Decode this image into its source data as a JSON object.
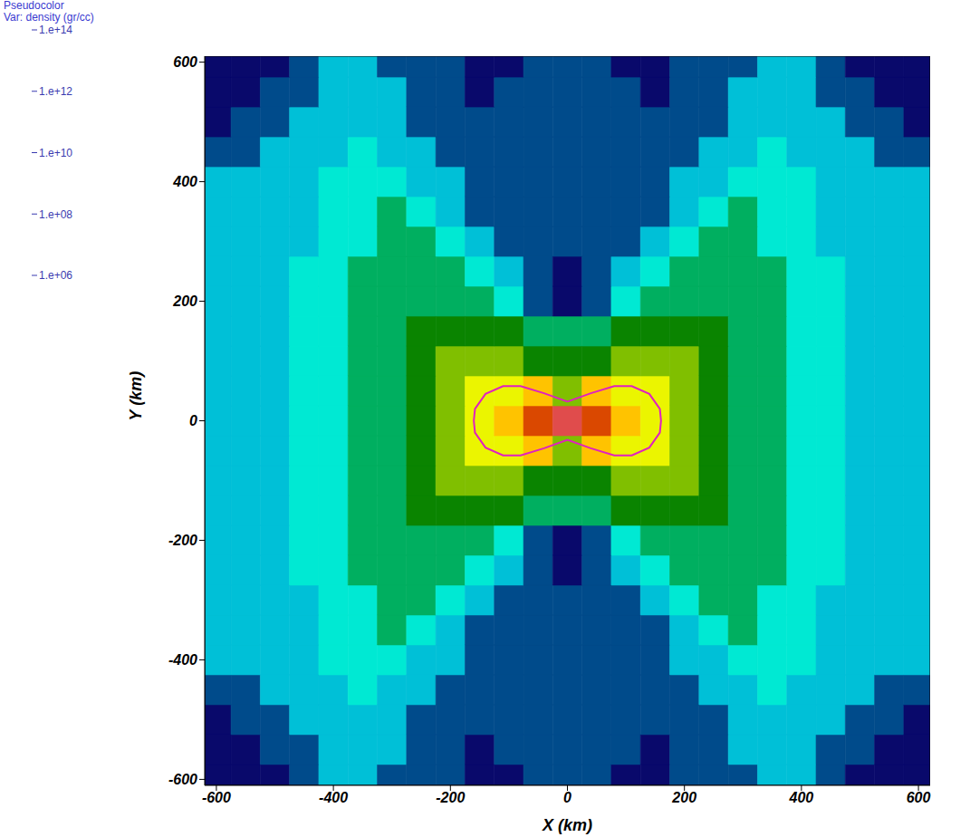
{
  "chart_data": {
    "type": "heatmap",
    "title": "Pseudocolor",
    "subtitle": "Var: density (gr/cc)",
    "x_label": "X (km)",
    "y_label": "Y (km)",
    "xlim": [
      -620,
      620
    ],
    "ylim": [
      -610,
      610
    ],
    "xticks": [
      -600,
      -400,
      -200,
      0,
      200,
      400,
      600
    ],
    "yticks": [
      -600,
      -400,
      -200,
      0,
      200,
      400,
      600
    ],
    "grid": false,
    "x": [
      -600,
      -550,
      -500,
      -450,
      -400,
      -350,
      -300,
      -250,
      -200,
      -150,
      -100,
      -50,
      0,
      50,
      100,
      150,
      200,
      250,
      300,
      350,
      400,
      450,
      500,
      550,
      600
    ],
    "y": [
      -600,
      -550,
      -500,
      -450,
      -400,
      -350,
      -300,
      -250,
      -200,
      -150,
      -100,
      -50,
      0,
      50,
      100,
      150,
      200,
      250,
      300,
      350,
      400,
      450,
      500,
      550,
      600
    ],
    "cells": [
      [
        10000000.0,
        10000000.0,
        10000000.0,
        30000000.0,
        100000000.0,
        100000000.0,
        30000000.0,
        30000000.0,
        30000000.0,
        10000000.0,
        10000000.0,
        30000000.0,
        30000000.0,
        30000000.0,
        10000000.0,
        10000000.0,
        30000000.0,
        30000000.0,
        30000000.0,
        100000000.0,
        100000000.0,
        30000000.0,
        10000000.0,
        10000000.0,
        10000000.0
      ],
      [
        10000000.0,
        10000000.0,
        30000000.0,
        30000000.0,
        100000000.0,
        100000000.0,
        100000000.0,
        30000000.0,
        30000000.0,
        10000000.0,
        30000000.0,
        30000000.0,
        30000000.0,
        30000000.0,
        30000000.0,
        10000000.0,
        30000000.0,
        30000000.0,
        100000000.0,
        100000000.0,
        100000000.0,
        30000000.0,
        30000000.0,
        10000000.0,
        10000000.0
      ],
      [
        10000000.0,
        30000000.0,
        30000000.0,
        100000000.0,
        100000000.0,
        100000000.0,
        100000000.0,
        30000000.0,
        30000000.0,
        30000000.0,
        30000000.0,
        30000000.0,
        30000000.0,
        30000000.0,
        30000000.0,
        30000000.0,
        30000000.0,
        30000000.0,
        100000000.0,
        100000000.0,
        100000000.0,
        100000000.0,
        30000000.0,
        30000000.0,
        10000000.0
      ],
      [
        30000000.0,
        30000000.0,
        100000000.0,
        100000000.0,
        100000000.0,
        300000000.0,
        100000000.0,
        100000000.0,
        30000000.0,
        30000000.0,
        30000000.0,
        30000000.0,
        30000000.0,
        30000000.0,
        30000000.0,
        30000000.0,
        30000000.0,
        100000000.0,
        100000000.0,
        300000000.0,
        100000000.0,
        100000000.0,
        100000000.0,
        30000000.0,
        30000000.0
      ],
      [
        100000000.0,
        100000000.0,
        100000000.0,
        100000000.0,
        300000000.0,
        300000000.0,
        300000000.0,
        100000000.0,
        100000000.0,
        30000000.0,
        30000000.0,
        30000000.0,
        30000000.0,
        30000000.0,
        30000000.0,
        30000000.0,
        100000000.0,
        100000000.0,
        300000000.0,
        300000000.0,
        300000000.0,
        100000000.0,
        100000000.0,
        100000000.0,
        100000000.0
      ],
      [
        100000000.0,
        100000000.0,
        100000000.0,
        100000000.0,
        300000000.0,
        300000000.0,
        1000000000.0,
        300000000.0,
        100000000.0,
        30000000.0,
        30000000.0,
        30000000.0,
        30000000.0,
        30000000.0,
        30000000.0,
        30000000.0,
        100000000.0,
        300000000.0,
        1000000000.0,
        300000000.0,
        300000000.0,
        100000000.0,
        100000000.0,
        100000000.0,
        100000000.0
      ],
      [
        100000000.0,
        100000000.0,
        100000000.0,
        100000000.0,
        300000000.0,
        300000000.0,
        1000000000.0,
        1000000000.0,
        300000000.0,
        100000000.0,
        30000000.0,
        30000000.0,
        30000000.0,
        30000000.0,
        30000000.0,
        100000000.0,
        300000000.0,
        1000000000.0,
        1000000000.0,
        300000000.0,
        300000000.0,
        100000000.0,
        100000000.0,
        100000000.0,
        100000000.0
      ],
      [
        100000000.0,
        100000000.0,
        100000000.0,
        300000000.0,
        300000000.0,
        1000000000.0,
        1000000000.0,
        1000000000.0,
        1000000000.0,
        300000000.0,
        100000000.0,
        30000000.0,
        10000000.0,
        30000000.0,
        100000000.0,
        300000000.0,
        1000000000.0,
        1000000000.0,
        1000000000.0,
        1000000000.0,
        300000000.0,
        300000000.0,
        100000000.0,
        100000000.0,
        100000000.0
      ],
      [
        100000000.0,
        100000000.0,
        100000000.0,
        300000000.0,
        300000000.0,
        1000000000.0,
        1000000000.0,
        1000000000.0,
        1000000000.0,
        1000000000.0,
        300000000.0,
        30000000.0,
        10000000.0,
        30000000.0,
        300000000.0,
        1000000000.0,
        1000000000.0,
        1000000000.0,
        1000000000.0,
        1000000000.0,
        300000000.0,
        300000000.0,
        100000000.0,
        100000000.0,
        100000000.0
      ],
      [
        100000000.0,
        100000000.0,
        100000000.0,
        300000000.0,
        300000000.0,
        1000000000.0,
        1000000000.0,
        3000000000.0,
        3000000000.0,
        3000000000.0,
        3000000000.0,
        1000000000.0,
        1000000000.0,
        1000000000.0,
        3000000000.0,
        3000000000.0,
        3000000000.0,
        3000000000.0,
        1000000000.0,
        1000000000.0,
        300000000.0,
        300000000.0,
        100000000.0,
        100000000.0,
        100000000.0
      ],
      [
        100000000.0,
        100000000.0,
        100000000.0,
        300000000.0,
        300000000.0,
        1000000000.0,
        1000000000.0,
        3000000000.0,
        10000000000.0,
        10000000000.0,
        10000000000.0,
        3000000000.0,
        3000000000.0,
        3000000000.0,
        10000000000.0,
        10000000000.0,
        10000000000.0,
        3000000000.0,
        1000000000.0,
        1000000000.0,
        300000000.0,
        300000000.0,
        100000000.0,
        100000000.0,
        100000000.0
      ],
      [
        100000000.0,
        100000000.0,
        100000000.0,
        300000000.0,
        300000000.0,
        1000000000.0,
        1000000000.0,
        3000000000.0,
        10000000000.0,
        30000000000.0,
        30000000000.0,
        100000000000.0,
        10000000000.0,
        100000000000.0,
        30000000000.0,
        30000000000.0,
        10000000000.0,
        3000000000.0,
        1000000000.0,
        1000000000.0,
        300000000.0,
        300000000.0,
        100000000.0,
        100000000.0,
        100000000.0
      ],
      [
        100000000.0,
        100000000.0,
        100000000.0,
        300000000.0,
        300000000.0,
        1000000000.0,
        1000000000.0,
        3000000000.0,
        10000000000.0,
        30000000000.0,
        100000000000.0,
        1000000000000.0,
        100000000000000.0,
        1000000000000.0,
        100000000000.0,
        30000000000.0,
        10000000000.0,
        3000000000.0,
        1000000000.0,
        1000000000.0,
        300000000.0,
        300000000.0,
        100000000.0,
        100000000.0,
        100000000.0
      ],
      [
        100000000.0,
        100000000.0,
        100000000.0,
        300000000.0,
        300000000.0,
        1000000000.0,
        1000000000.0,
        3000000000.0,
        10000000000.0,
        30000000000.0,
        30000000000.0,
        100000000000.0,
        10000000000.0,
        100000000000.0,
        30000000000.0,
        30000000000.0,
        10000000000.0,
        3000000000.0,
        1000000000.0,
        1000000000.0,
        300000000.0,
        300000000.0,
        100000000.0,
        100000000.0,
        100000000.0
      ],
      [
        100000000.0,
        100000000.0,
        100000000.0,
        300000000.0,
        300000000.0,
        1000000000.0,
        1000000000.0,
        3000000000.0,
        10000000000.0,
        10000000000.0,
        10000000000.0,
        3000000000.0,
        3000000000.0,
        3000000000.0,
        10000000000.0,
        10000000000.0,
        10000000000.0,
        3000000000.0,
        1000000000.0,
        1000000000.0,
        300000000.0,
        300000000.0,
        100000000.0,
        100000000.0,
        100000000.0
      ],
      [
        100000000.0,
        100000000.0,
        100000000.0,
        300000000.0,
        300000000.0,
        1000000000.0,
        1000000000.0,
        3000000000.0,
        3000000000.0,
        3000000000.0,
        3000000000.0,
        1000000000.0,
        1000000000.0,
        1000000000.0,
        3000000000.0,
        3000000000.0,
        3000000000.0,
        3000000000.0,
        1000000000.0,
        1000000000.0,
        300000000.0,
        300000000.0,
        100000000.0,
        100000000.0,
        100000000.0
      ],
      [
        100000000.0,
        100000000.0,
        100000000.0,
        300000000.0,
        300000000.0,
        1000000000.0,
        1000000000.0,
        1000000000.0,
        1000000000.0,
        1000000000.0,
        300000000.0,
        30000000.0,
        10000000.0,
        30000000.0,
        300000000.0,
        1000000000.0,
        1000000000.0,
        1000000000.0,
        1000000000.0,
        1000000000.0,
        300000000.0,
        300000000.0,
        100000000.0,
        100000000.0,
        100000000.0
      ],
      [
        100000000.0,
        100000000.0,
        100000000.0,
        300000000.0,
        300000000.0,
        1000000000.0,
        1000000000.0,
        1000000000.0,
        1000000000.0,
        300000000.0,
        100000000.0,
        30000000.0,
        10000000.0,
        30000000.0,
        100000000.0,
        300000000.0,
        1000000000.0,
        1000000000.0,
        1000000000.0,
        1000000000.0,
        300000000.0,
        300000000.0,
        100000000.0,
        100000000.0,
        100000000.0
      ],
      [
        100000000.0,
        100000000.0,
        100000000.0,
        100000000.0,
        300000000.0,
        300000000.0,
        1000000000.0,
        1000000000.0,
        300000000.0,
        100000000.0,
        30000000.0,
        30000000.0,
        30000000.0,
        30000000.0,
        30000000.0,
        100000000.0,
        300000000.0,
        1000000000.0,
        1000000000.0,
        300000000.0,
        300000000.0,
        100000000.0,
        100000000.0,
        100000000.0,
        100000000.0
      ],
      [
        100000000.0,
        100000000.0,
        100000000.0,
        100000000.0,
        300000000.0,
        300000000.0,
        1000000000.0,
        300000000.0,
        100000000.0,
        30000000.0,
        30000000.0,
        30000000.0,
        30000000.0,
        30000000.0,
        30000000.0,
        30000000.0,
        100000000.0,
        300000000.0,
        1000000000.0,
        300000000.0,
        300000000.0,
        100000000.0,
        100000000.0,
        100000000.0,
        100000000.0
      ],
      [
        100000000.0,
        100000000.0,
        100000000.0,
        100000000.0,
        300000000.0,
        300000000.0,
        300000000.0,
        100000000.0,
        100000000.0,
        30000000.0,
        30000000.0,
        30000000.0,
        30000000.0,
        30000000.0,
        30000000.0,
        30000000.0,
        100000000.0,
        100000000.0,
        300000000.0,
        300000000.0,
        300000000.0,
        100000000.0,
        100000000.0,
        100000000.0,
        100000000.0
      ],
      [
        30000000.0,
        30000000.0,
        100000000.0,
        100000000.0,
        100000000.0,
        300000000.0,
        100000000.0,
        100000000.0,
        30000000.0,
        30000000.0,
        30000000.0,
        30000000.0,
        30000000.0,
        30000000.0,
        30000000.0,
        30000000.0,
        30000000.0,
        100000000.0,
        100000000.0,
        300000000.0,
        100000000.0,
        100000000.0,
        100000000.0,
        30000000.0,
        30000000.0
      ],
      [
        10000000.0,
        30000000.0,
        30000000.0,
        100000000.0,
        100000000.0,
        100000000.0,
        100000000.0,
        30000000.0,
        30000000.0,
        30000000.0,
        30000000.0,
        30000000.0,
        30000000.0,
        30000000.0,
        30000000.0,
        30000000.0,
        30000000.0,
        30000000.0,
        100000000.0,
        100000000.0,
        100000000.0,
        100000000.0,
        30000000.0,
        30000000.0,
        10000000.0
      ],
      [
        10000000.0,
        10000000.0,
        30000000.0,
        30000000.0,
        100000000.0,
        100000000.0,
        100000000.0,
        30000000.0,
        30000000.0,
        10000000.0,
        30000000.0,
        30000000.0,
        30000000.0,
        30000000.0,
        30000000.0,
        10000000.0,
        30000000.0,
        30000000.0,
        100000000.0,
        100000000.0,
        100000000.0,
        30000000.0,
        30000000.0,
        10000000.0,
        10000000.0
      ],
      [
        10000000.0,
        10000000.0,
        10000000.0,
        30000000.0,
        100000000.0,
        100000000.0,
        30000000.0,
        30000000.0,
        30000000.0,
        10000000.0,
        10000000.0,
        30000000.0,
        30000000.0,
        30000000.0,
        10000000.0,
        10000000.0,
        30000000.0,
        30000000.0,
        30000000.0,
        100000000.0,
        100000000.0,
        30000000.0,
        10000000.0,
        10000000.0,
        10000000.0
      ]
    ],
    "colorbar": {
      "range": [
        1000000.0,
        100000000000000.0
      ],
      "log": true,
      "ticks": [
        {
          "value": 100000000000000.0,
          "label": "1.e+14"
        },
        {
          "value": 1000000000000.0,
          "label": "1.e+12"
        },
        {
          "value": 10000000000.0,
          "label": "1.e+10"
        },
        {
          "value": 100000000.0,
          "label": "1.e+08"
        },
        {
          "value": 1000000.0,
          "label": "1.e+06"
        }
      ]
    },
    "contour": {
      "color": "#e020c0",
      "x": [
        0,
        40,
        80,
        110,
        140,
        158,
        160,
        158,
        140,
        110,
        80,
        40,
        0,
        -40,
        -80,
        -110,
        -140,
        -158,
        -160,
        -158,
        -140,
        -110,
        -80,
        -40,
        0
      ],
      "y": [
        32,
        46,
        58,
        58,
        45,
        20,
        0,
        -20,
        -45,
        -58,
        -58,
        -46,
        -32,
        -46,
        -58,
        -58,
        -45,
        -20,
        0,
        20,
        45,
        58,
        58,
        46,
        32
      ]
    }
  }
}
